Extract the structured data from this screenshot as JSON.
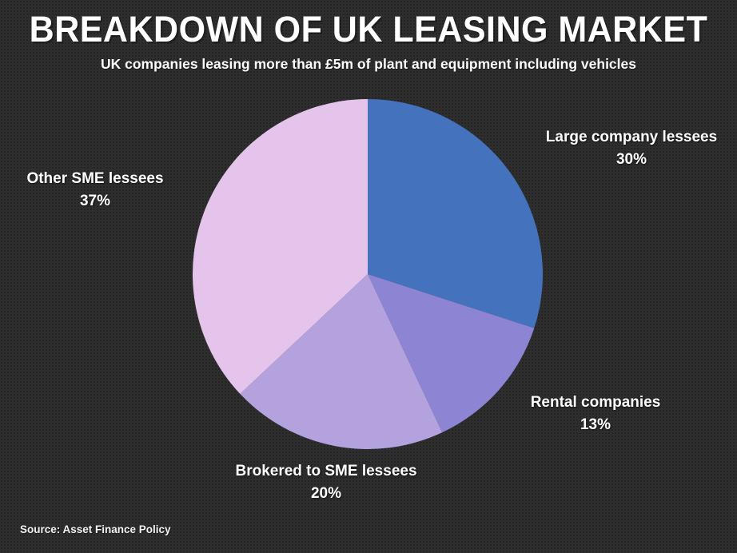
{
  "header": {
    "title": "BREAKDOWN OF UK LEASING MARKET",
    "subtitle": "UK companies leasing more than £5m of plant and equipment including vehicles"
  },
  "footer": {
    "source": "Source: Asset Finance Policy"
  },
  "colors": {
    "background": "#2e2e2e",
    "text": "#ffffff"
  },
  "chart_data": {
    "type": "pie",
    "title": "BREAKDOWN OF UK LEASING MARKET",
    "subtitle": "UK companies leasing more than £5m of plant and equipment including vehicles",
    "legend_position": "labels-outside",
    "start_angle_deg": -90,
    "direction": "clockwise",
    "slices": [
      {
        "label": "Large company lessees",
        "value": 30,
        "pct_label": "30%",
        "color": "#4472bd"
      },
      {
        "label": "Rental companies",
        "value": 13,
        "pct_label": "13%",
        "color": "#8d85d3"
      },
      {
        "label": "Brokered to SME lessees",
        "value": 20,
        "pct_label": "20%",
        "color": "#b3a2de"
      },
      {
        "label": "Other SME lessees",
        "value": 37,
        "pct_label": "37%",
        "color": "#e4c4ea"
      }
    ]
  }
}
